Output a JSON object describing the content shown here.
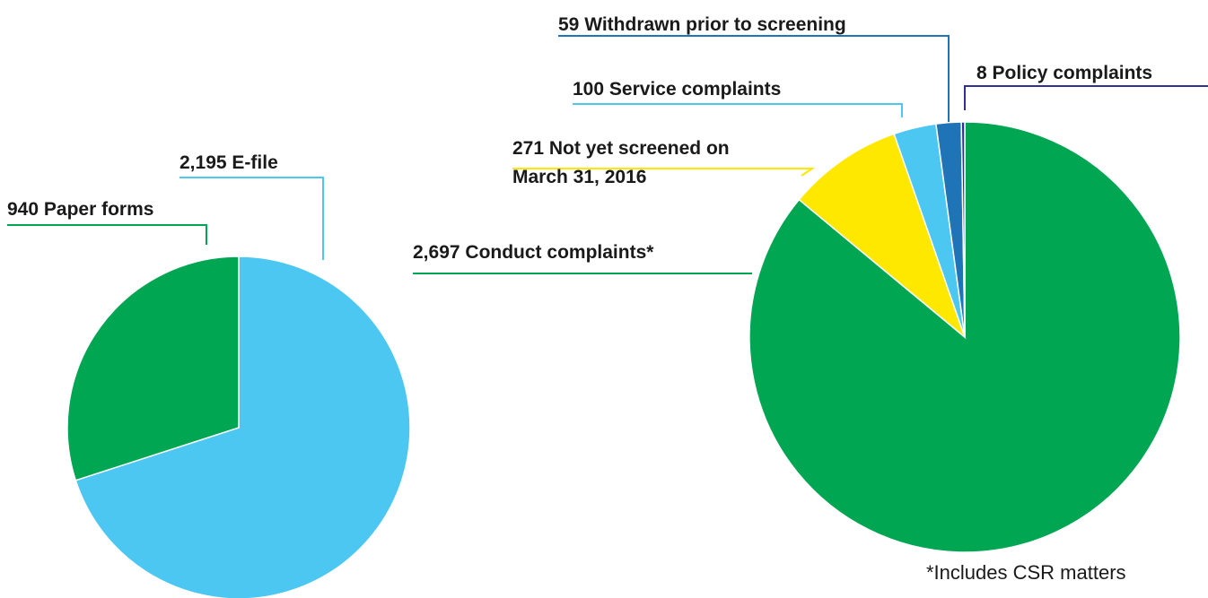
{
  "chart_data": [
    {
      "type": "pie",
      "categories": [
        "E-file",
        "Paper forms"
      ],
      "values": [
        2195,
        940
      ],
      "value_labels": [
        "2,195",
        "940"
      ],
      "colors": [
        "#4bc7f2",
        "#00a651"
      ]
    },
    {
      "type": "pie",
      "categories": [
        "Conduct complaints*",
        "Not yet screened on March 31, 2016",
        "Service complaints",
        "Withdrawn prior to screening",
        "Policy complaints"
      ],
      "values": [
        2697,
        271,
        100,
        59,
        8
      ],
      "value_labels": [
        "2,697",
        "271",
        "100",
        "59",
        "8"
      ],
      "colors": [
        "#00a651",
        "#ffe800",
        "#4bc7f2",
        "#1f73b7",
        "#2e3192"
      ]
    }
  ],
  "footnote": "*Includes CSR matters"
}
